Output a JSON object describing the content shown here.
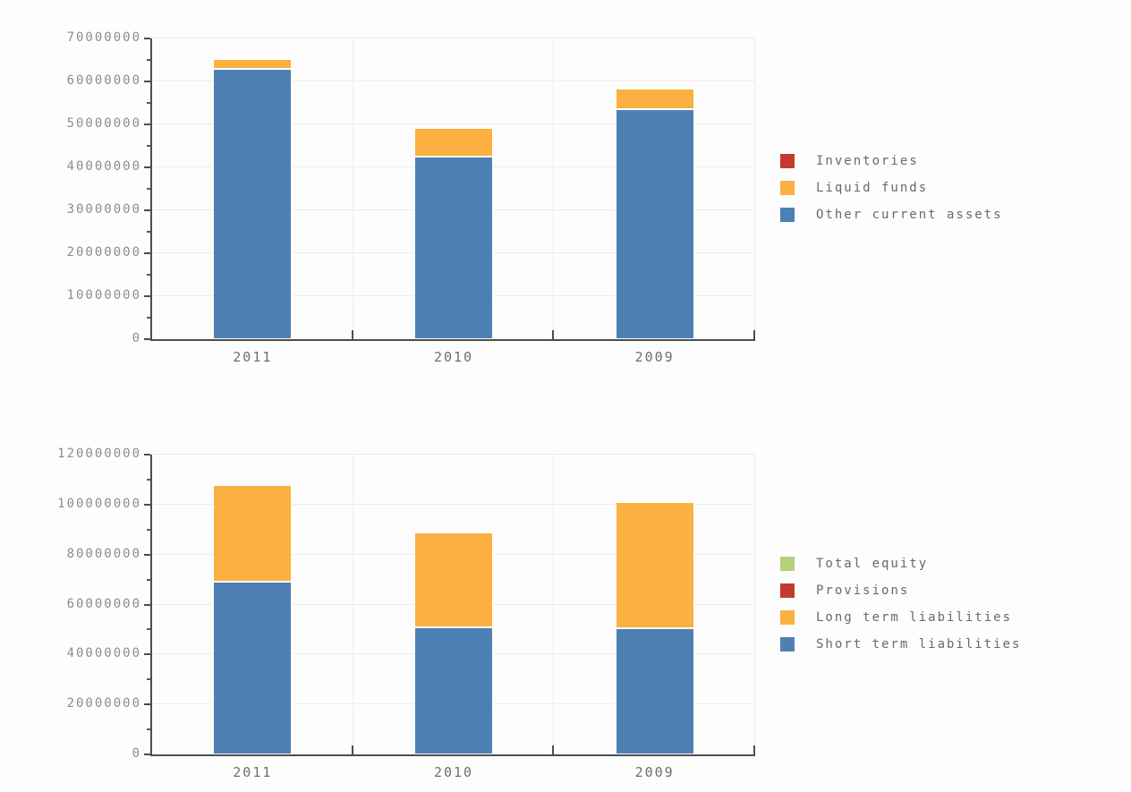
{
  "style": {
    "background": "#fdfdfd",
    "grid_color": "#ececec",
    "axis_color": "#4d4d4d",
    "ytick_label_color": "#8c8c8c",
    "xtick_label_color": "#6e6e6e",
    "legend_text_color": "#696969",
    "segment_border_color": "#ffffff"
  },
  "chart_data": [
    {
      "type": "bar",
      "stacked": true,
      "title": "",
      "xlabel": "",
      "ylabel": "",
      "categories": [
        "2011",
        "2010",
        "2009"
      ],
      "series": [
        {
          "name": "Inventories",
          "color": "#c23a31",
          "values": [
            0,
            0,
            0
          ]
        },
        {
          "name": "Liquid funds",
          "color": "#fbb041",
          "values": [
            2200000,
            6700000,
            4800000
          ]
        },
        {
          "name": "Other current assets",
          "color": "#4e81b3",
          "values": [
            63000000,
            42500000,
            53500000
          ]
        }
      ],
      "ylim": [
        0,
        70000000
      ],
      "ytick_step": 10000000,
      "yminor_step": 5000000,
      "yticks": [
        "0",
        "10000000",
        "20000000",
        "30000000",
        "40000000",
        "50000000",
        "60000000",
        "70000000"
      ],
      "grid": true,
      "legend_position": "right"
    },
    {
      "type": "bar",
      "stacked": true,
      "title": "",
      "xlabel": "",
      "ylabel": "",
      "categories": [
        "2011",
        "2010",
        "2009"
      ],
      "series": [
        {
          "name": "Total equity",
          "color": "#b4d17b",
          "values": [
            0,
            0,
            0
          ]
        },
        {
          "name": "Provisions",
          "color": "#c23a31",
          "values": [
            0,
            0,
            0
          ]
        },
        {
          "name": "Long term liabilities",
          "color": "#fbb041",
          "values": [
            39000000,
            38000000,
            50500000
          ]
        },
        {
          "name": "Short term liabilities",
          "color": "#4e81b3",
          "values": [
            69000000,
            51000000,
            50500000
          ]
        }
      ],
      "ylim": [
        0,
        120000000
      ],
      "ytick_step": 20000000,
      "yminor_step": 10000000,
      "yticks": [
        "0",
        "20000000",
        "40000000",
        "60000000",
        "80000000",
        "100000000",
        "120000000"
      ],
      "grid": true,
      "legend_position": "right"
    }
  ]
}
